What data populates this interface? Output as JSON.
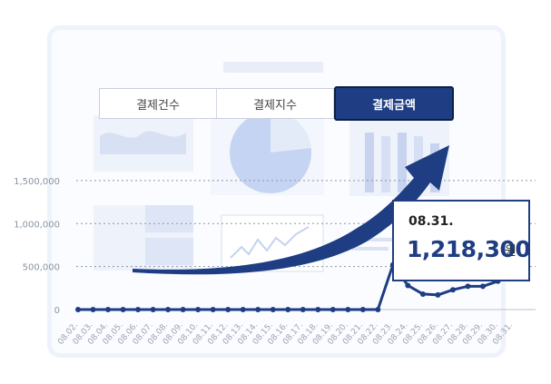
{
  "tabs": [
    {
      "label": "결제건수",
      "active": false
    },
    {
      "label": "결제지수",
      "active": false
    },
    {
      "label": "결제금액",
      "active": true
    }
  ],
  "callout": {
    "date": "08.31.",
    "value": "1,218,300",
    "unit": "원"
  },
  "colors": {
    "primary": "#1e3d82",
    "grid": "#8a97ad",
    "frame": "#eef2fb"
  },
  "chart_data": {
    "type": "line",
    "title": "",
    "xlabel": "",
    "ylabel": "",
    "ylim": [
      0,
      1900000
    ],
    "yticks": [
      0,
      500000,
      1000000,
      1500000
    ],
    "ytick_labels": [
      "0",
      "500,000",
      "1,000,000",
      "1,500,000"
    ],
    "grid": true,
    "x": [
      "08.02.",
      "08.03.",
      "08.04.",
      "08.05.",
      "08.06.",
      "08.07.",
      "08.08.",
      "08.09.",
      "08.10.",
      "08.11.",
      "08.12.",
      "08.13.",
      "08.14.",
      "08.15.",
      "08.16.",
      "08.17.",
      "08.18.",
      "08.19.",
      "08.20.",
      "08.21.",
      "08.22.",
      "08.23.",
      "08.24.",
      "08.25.",
      "08.26.",
      "08.27.",
      "08.28.",
      "08.29.",
      "08.30.",
      "08.31."
    ],
    "series": [
      {
        "values": [
          0,
          0,
          0,
          0,
          0,
          0,
          0,
          0,
          0,
          0,
          0,
          0,
          0,
          0,
          0,
          0,
          0,
          0,
          0,
          0,
          0,
          520000,
          280000,
          180000,
          170000,
          230000,
          270000,
          270000,
          330000,
          1218300
        ]
      }
    ]
  }
}
